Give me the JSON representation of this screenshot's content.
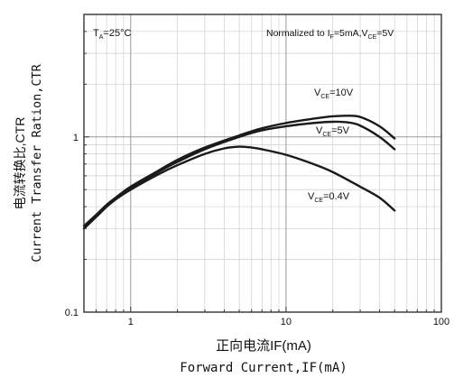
{
  "chart_data": {
    "type": "line",
    "xlabel_cn": "正向电流IF(mA)",
    "xlabel_en": "Forward Current,IF(mA)",
    "ylabel_cn": "电流转换比,CTR",
    "ylabel_en": "Current Transfer Ration,CTR",
    "x_scale": "log",
    "y_scale": "log",
    "xlim": [
      0.5,
      100
    ],
    "ylim": [
      0.1,
      5
    ],
    "x_ticks": [
      {
        "value": 1,
        "label": "1"
      },
      {
        "value": 10,
        "label": "10"
      },
      {
        "value": 100,
        "label": "100"
      }
    ],
    "y_ticks": [
      {
        "value": 0.1,
        "label": "0.1"
      },
      {
        "value": 1,
        "label": "1"
      }
    ],
    "grid": true,
    "annotations": {
      "temp": {
        "main": "T",
        "sub": "A",
        "rest": "=25°C"
      },
      "norm": {
        "p1": "Normalized to I",
        "s1": "F",
        "p2": "=5mA,V",
        "s2": "CE",
        "p3": "=5V"
      }
    },
    "series": [
      {
        "name": "VCE=10V",
        "label_main": "V",
        "label_sub": "CE",
        "label_rest": "=10V",
        "x": [
          0.5,
          0.6,
          0.7,
          0.8,
          1.0,
          1.5,
          2,
          3,
          5,
          7,
          10,
          15,
          20,
          25,
          30,
          40,
          50
        ],
        "y": [
          0.31,
          0.36,
          0.41,
          0.45,
          0.52,
          0.64,
          0.74,
          0.87,
          1.02,
          1.12,
          1.2,
          1.27,
          1.31,
          1.32,
          1.3,
          1.15,
          0.98
        ]
      },
      {
        "name": "VCE=5V",
        "label_main": "V",
        "label_sub": "CE",
        "label_rest": "=5V",
        "x": [
          0.5,
          0.6,
          0.7,
          0.8,
          1.0,
          1.5,
          2,
          3,
          5,
          7,
          10,
          15,
          20,
          25,
          30,
          40,
          50
        ],
        "y": [
          0.3,
          0.35,
          0.4,
          0.44,
          0.51,
          0.63,
          0.72,
          0.85,
          1.0,
          1.09,
          1.15,
          1.2,
          1.22,
          1.21,
          1.16,
          1.0,
          0.85
        ]
      },
      {
        "name": "VCE=0.4V",
        "label_main": "V",
        "label_sub": "CE",
        "label_rest": "=0.4V",
        "x": [
          0.5,
          0.6,
          0.7,
          0.8,
          1.0,
          1.5,
          2,
          3,
          4,
          5,
          6,
          7,
          10,
          15,
          20,
          30,
          40,
          50
        ],
        "y": [
          0.3,
          0.35,
          0.4,
          0.44,
          0.5,
          0.61,
          0.69,
          0.8,
          0.86,
          0.88,
          0.87,
          0.85,
          0.79,
          0.7,
          0.63,
          0.52,
          0.45,
          0.38
        ]
      }
    ]
  }
}
